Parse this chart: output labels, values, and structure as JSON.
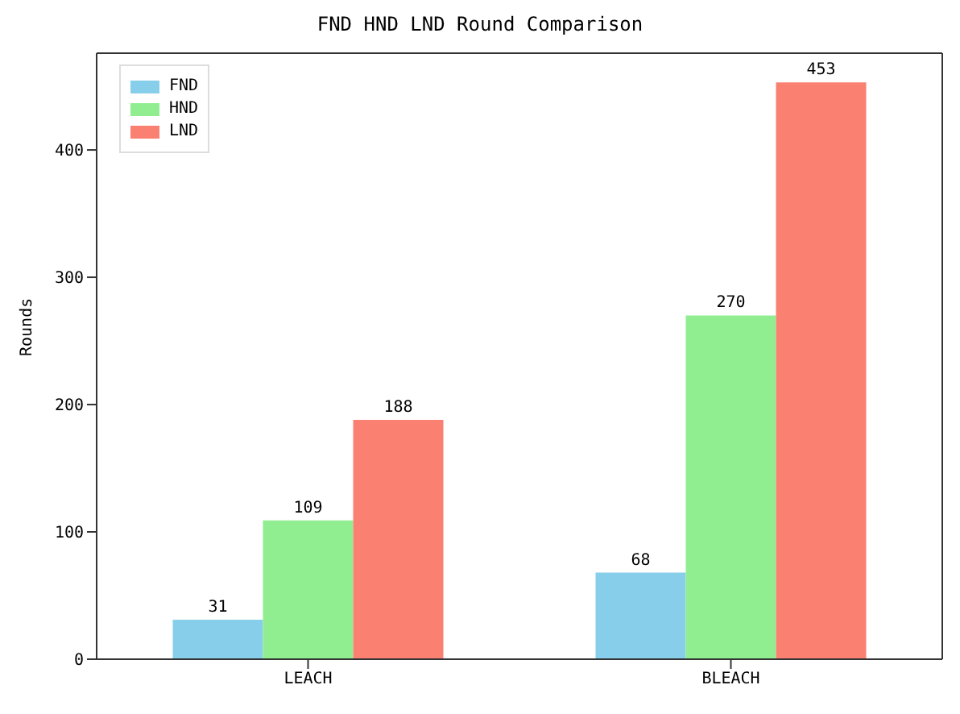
{
  "chart_data": {
    "type": "bar",
    "title": "FND HND LND Round Comparison",
    "ylabel": "Rounds",
    "categories": [
      "LEACH",
      "BLEACH"
    ],
    "series": [
      {
        "name": "FND",
        "color": "#87ceeb",
        "values": [
          31,
          68
        ]
      },
      {
        "name": "HND",
        "color": "#90ee90",
        "values": [
          109,
          270
        ]
      },
      {
        "name": "LND",
        "color": "#fa8072",
        "values": [
          188,
          453
        ]
      }
    ],
    "ylim": [
      0,
      476
    ],
    "yticks": [
      0,
      100,
      200,
      300,
      400
    ],
    "data_labels": true,
    "legend": "top left",
    "grid": false
  }
}
